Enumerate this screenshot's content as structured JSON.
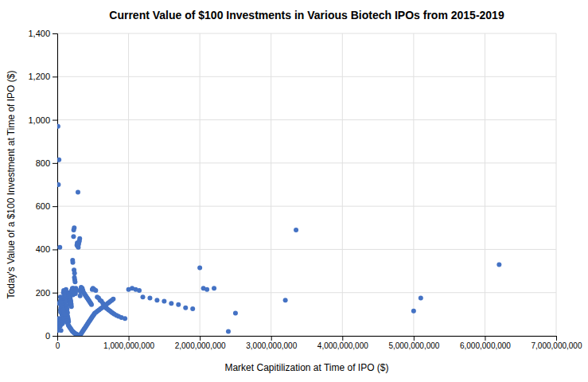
{
  "chart_data": {
    "type": "scatter",
    "title": "Current Value of $100 Investments in Various Biotech IPOs from 2015-2019",
    "xlabel": "Market Capitilization at Time of IPO ($)",
    "ylabel": "Today's Value of a $100 Investment at Time of IPO ($)",
    "color": "#4472C4",
    "grid": true,
    "xlim": [
      0,
      7000000000
    ],
    "ylim": [
      0,
      1400
    ],
    "xticks": [
      0,
      {
        "value": 1000000000,
        "label": "1,000,000,000"
      },
      {
        "value": 2000000000,
        "label": "2,000,000,000"
      },
      {
        "value": 3000000000,
        "label": "3,000,000,000"
      },
      {
        "value": 4000000000,
        "label": "4,000,000,000"
      },
      {
        "value": 5000000000,
        "label": "5,000,000,000"
      },
      {
        "value": 6000000000,
        "label": "6,000,000,000"
      },
      {
        "value": 7000000000,
        "label": "7,000,000,000"
      }
    ],
    "yticks": [
      0,
      200,
      400,
      600,
      800,
      {
        "value": 1000,
        "label": "1,000"
      },
      {
        "value": 1200,
        "label": "1,200"
      },
      {
        "value": 1400,
        "label": "1,400"
      }
    ],
    "x": [
      5000000,
      8000000,
      12000000,
      15000000,
      18000000,
      20000000,
      22000000,
      25000000,
      28000000,
      30000000,
      32000000,
      35000000,
      38000000,
      40000000,
      42000000,
      45000000,
      48000000,
      50000000,
      52000000,
      55000000,
      58000000,
      60000000,
      62000000,
      65000000,
      68000000,
      70000000,
      72000000,
      75000000,
      78000000,
      80000000,
      82000000,
      85000000,
      88000000,
      90000000,
      92000000,
      95000000,
      98000000,
      100000000,
      102000000,
      105000000,
      108000000,
      110000000,
      112000000,
      115000000,
      118000000,
      120000000,
      122000000,
      125000000,
      128000000,
      130000000,
      132000000,
      135000000,
      138000000,
      140000000,
      142000000,
      145000000,
      148000000,
      150000000,
      152000000,
      155000000,
      158000000,
      160000000,
      162000000,
      165000000,
      168000000,
      170000000,
      172000000,
      175000000,
      178000000,
      180000000,
      182000000,
      185000000,
      188000000,
      190000000,
      192000000,
      195000000,
      198000000,
      200000000,
      202000000,
      205000000,
      208000000,
      210000000,
      212000000,
      215000000,
      218000000,
      220000000,
      222000000,
      225000000,
      228000000,
      230000000,
      232000000,
      235000000,
      238000000,
      240000000,
      242000000,
      245000000,
      248000000,
      250000000,
      255000000,
      260000000,
      265000000,
      270000000,
      275000000,
      280000000,
      285000000,
      290000000,
      295000000,
      300000000,
      305000000,
      310000000,
      315000000,
      320000000,
      325000000,
      330000000,
      335000000,
      340000000,
      345000000,
      350000000,
      360000000,
      370000000,
      380000000,
      390000000,
      400000000,
      410000000,
      420000000,
      430000000,
      440000000,
      450000000,
      460000000,
      470000000,
      480000000,
      490000000,
      500000000,
      520000000,
      540000000,
      560000000,
      580000000,
      600000000,
      620000000,
      640000000,
      660000000,
      680000000,
      700000000,
      720000000,
      740000000,
      760000000,
      780000000,
      800000000,
      830000000,
      860000000,
      900000000,
      950000000,
      1000000000,
      1050000000,
      1100000000,
      1150000000,
      1200000000,
      1300000000,
      1400000000,
      1500000000,
      1600000000,
      1700000000,
      1800000000,
      1900000000,
      2000000000,
      2050000000,
      2100000000,
      2200000000,
      2400000000,
      2500000000,
      3200000000,
      3350000000,
      5000000000,
      5100000000,
      6200000000,
      10000000,
      16000000,
      24000000,
      36000000,
      44000000,
      54000000,
      64000000,
      74000000,
      84000000,
      94000000,
      104000000,
      114000000,
      124000000,
      134000000,
      144000000,
      154000000,
      164000000,
      174000000,
      184000000,
      194000000,
      204000000,
      214000000,
      224000000,
      234000000,
      244000000,
      254000000,
      264000000,
      274000000,
      284000000,
      294000000,
      304000000,
      314000000,
      324000000,
      334000000,
      344000000,
      354000000,
      364000000,
      374000000,
      384000000,
      394000000,
      404000000,
      414000000,
      424000000,
      434000000,
      444000000,
      454000000,
      464000000,
      474000000,
      484000000,
      494000000,
      506000000,
      516000000,
      526000000,
      546000000,
      566000000,
      586000000,
      606000000,
      626000000,
      646000000,
      666000000,
      686000000,
      706000000,
      726000000,
      746000000,
      766000000,
      786000000
    ],
    "values": [
      25,
      40,
      30,
      60,
      35,
      80,
      50,
      150,
      45,
      55,
      65,
      75,
      55,
      160,
      45,
      120,
      110,
      130,
      25,
      135,
      145,
      140,
      165,
      100,
      55,
      95,
      90,
      155,
      60,
      180,
      70,
      200,
      75,
      210,
      80,
      170,
      160,
      155,
      145,
      190,
      175,
      185,
      180,
      200,
      135,
      205,
      215,
      195,
      185,
      170,
      160,
      140,
      125,
      110,
      105,
      90,
      85,
      80,
      75,
      70,
      65,
      200,
      195,
      185,
      175,
      165,
      160,
      155,
      145,
      175,
      170,
      165,
      160,
      155,
      150,
      145,
      135,
      200,
      210,
      210,
      205,
      215,
      220,
      350,
      340,
      190,
      205,
      220,
      460,
      490,
      195,
      305,
      500,
      270,
      290,
      260,
      200,
      250,
      195,
      220,
      215,
      210,
      420,
      430,
      415,
      665,
      410,
      425,
      435,
      440,
      450,
      185,
      205,
      215,
      225,
      215,
      205,
      220,
      210,
      200,
      195,
      190,
      185,
      180,
      175,
      170,
      165,
      160,
      155,
      150,
      145,
      215,
      220,
      215,
      210,
      180,
      175,
      165,
      160,
      150,
      145,
      130,
      125,
      120,
      115,
      110,
      105,
      100,
      95,
      90,
      85,
      80,
      215,
      220,
      215,
      210,
      180,
      175,
      165,
      160,
      150,
      145,
      130,
      125,
      315,
      220,
      215,
      220,
      20,
      105,
      165,
      490,
      115,
      175,
      330,
      970,
      700,
      815,
      410,
      180,
      155,
      140,
      130,
      120,
      110,
      100,
      90,
      80,
      70,
      60,
      50,
      45,
      40,
      35,
      30,
      25,
      20,
      18,
      15,
      12,
      10,
      8,
      6,
      5,
      4,
      3,
      2,
      5,
      10,
      15,
      20,
      25,
      30,
      35,
      40,
      45,
      50,
      55,
      60,
      65,
      70,
      75,
      80,
      85,
      90,
      95,
      100,
      105,
      110,
      115,
      120,
      125,
      130,
      135,
      140,
      145,
      150,
      155,
      160,
      165,
      170
    ]
  }
}
